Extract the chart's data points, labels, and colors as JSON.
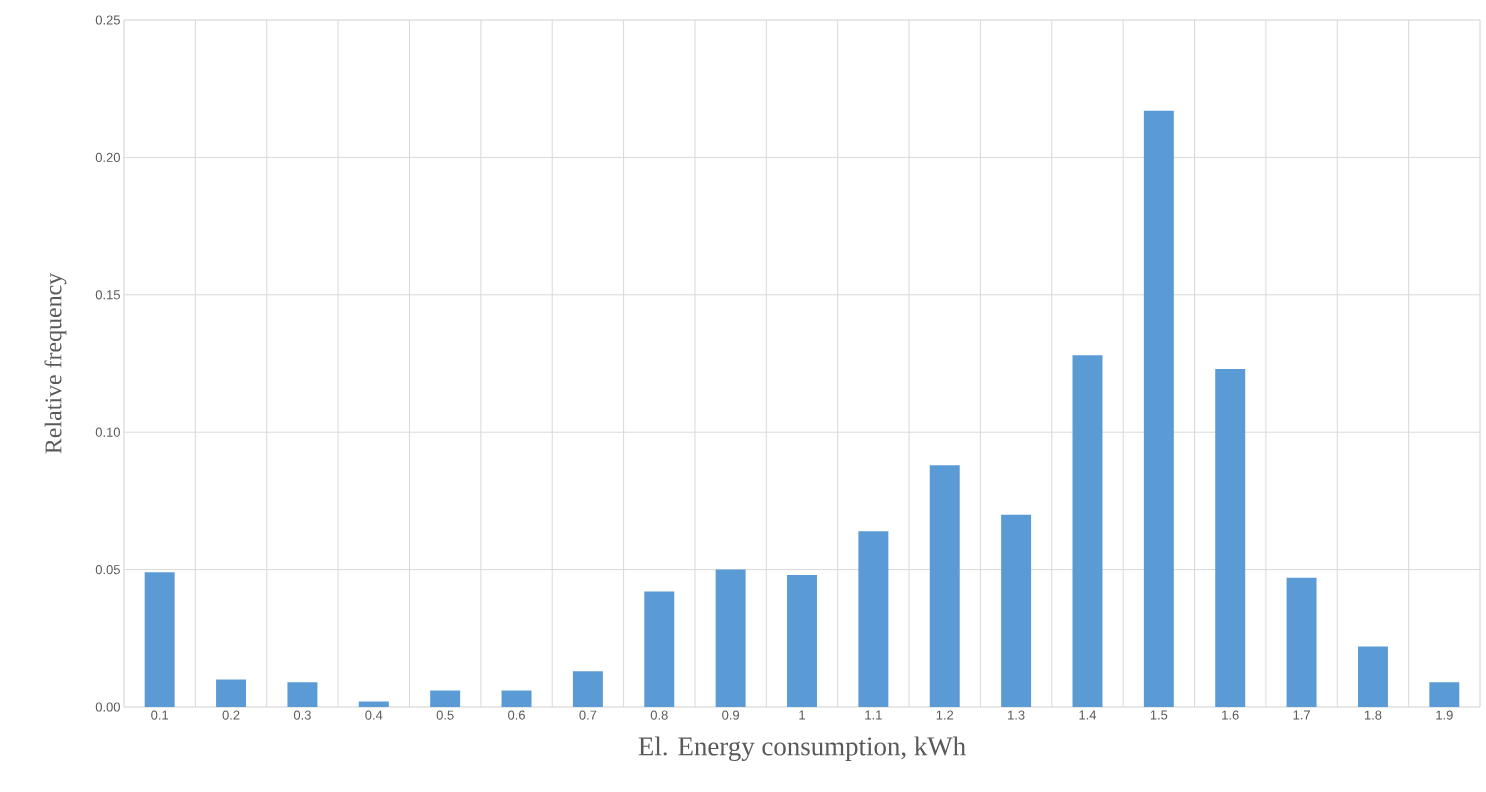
{
  "chart_data": {
    "type": "bar",
    "xlabel": "El. Energy consumption, kWh",
    "ylabel": "Relative frequency",
    "categories": [
      "0.1",
      "0.2",
      "0.3",
      "0.4",
      "0.5",
      "0.6",
      "0.7",
      "0.8",
      "0.9",
      "1",
      "1.1",
      "1.2",
      "1.3",
      "1.4",
      "1.5",
      "1.6",
      "1.7",
      "1.8",
      "1.9"
    ],
    "values": [
      0.049,
      0.01,
      0.009,
      0.002,
      0.006,
      0.006,
      0.013,
      0.042,
      0.05,
      0.048,
      0.064,
      0.088,
      0.07,
      0.128,
      0.217,
      0.123,
      0.047,
      0.022,
      0.009
    ],
    "color": "#5b9bd5",
    "ylim": [
      0,
      0.25
    ],
    "yticks": [
      {
        "value": 0,
        "label": "0.00"
      },
      {
        "value": 0.05,
        "label": "0.05"
      },
      {
        "value": 0.1,
        "label": "0.10"
      },
      {
        "value": 0.15,
        "label": "0.15"
      },
      {
        "value": 0.2,
        "label": "0.20"
      },
      {
        "value": 0.25,
        "label": "0.25"
      }
    ],
    "grid": true
  }
}
